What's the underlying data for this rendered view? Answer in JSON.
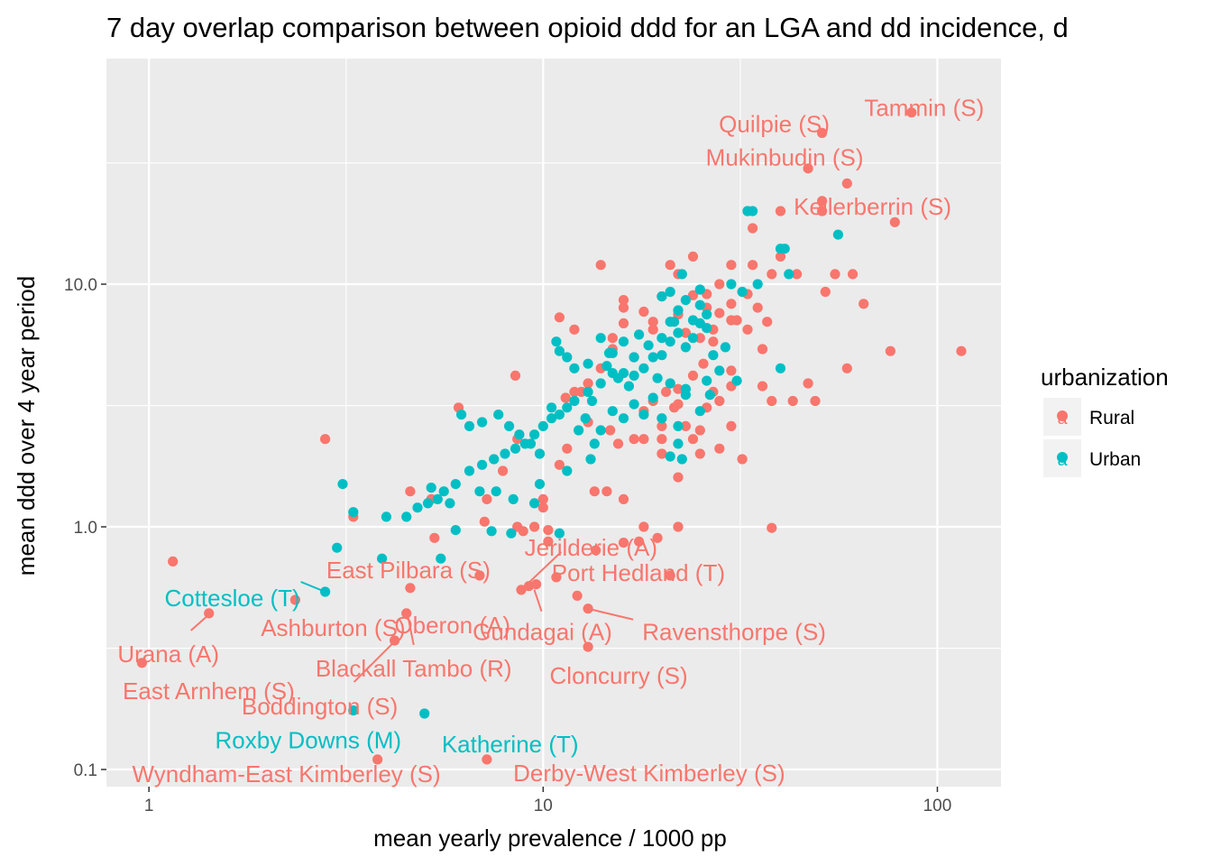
{
  "chart_data": {
    "type": "scatter",
    "title": "7 day overlap comparison between opioid ddd for an LGA and dd incidence, d",
    "xlabel": "mean yearly prevalence / 1000 pp",
    "ylabel": "mean ddd over 4 year period",
    "x_scale": "log10",
    "y_scale": "log10",
    "xlim": [
      0.78,
      145
    ],
    "ylim": [
      0.085,
      85
    ],
    "x_ticks": [
      1,
      10,
      100
    ],
    "x_tick_labels": [
      "1",
      "10",
      "100"
    ],
    "y_ticks": [
      0.1,
      1,
      10
    ],
    "y_tick_labels": [
      "0.1",
      "1.0",
      "10.0"
    ],
    "grid": true,
    "legend": {
      "title": "urbanization",
      "placement": "right",
      "key_glyph": "a"
    },
    "colors": {
      "Rural": "#F8766D",
      "Urban": "#00BFC4",
      "panel": "#EBEBEB",
      "grid": "#FFFFFF"
    },
    "series": [
      {
        "name": "Rural",
        "points": [
          [
            86,
            51
          ],
          [
            51,
            42
          ],
          [
            47,
            30
          ],
          [
            59,
            26
          ],
          [
            51,
            20
          ],
          [
            51,
            22
          ],
          [
            40,
            20
          ],
          [
            78,
            18
          ],
          [
            33,
            20
          ],
          [
            34,
            17
          ],
          [
            55,
            11
          ],
          [
            61,
            11
          ],
          [
            65,
            8.3
          ],
          [
            52,
            9.3
          ],
          [
            40,
            13
          ],
          [
            38,
            11
          ],
          [
            44,
            11
          ],
          [
            115,
            5.3
          ],
          [
            76,
            5.3
          ],
          [
            59,
            4.5
          ],
          [
            47,
            3.9
          ],
          [
            43,
            3.3
          ],
          [
            49,
            3.3
          ],
          [
            38,
            0.99
          ],
          [
            14,
            12
          ],
          [
            12,
            6.5
          ],
          [
            11,
            7.3
          ],
          [
            6.1,
            3.1
          ],
          [
            2.8,
            2.3
          ],
          [
            1.15,
            0.72
          ],
          [
            1.42,
            0.44
          ],
          [
            0.96,
            0.275
          ],
          [
            2.35,
            0.5
          ],
          [
            3.3,
            1.1
          ],
          [
            8.5,
            4.2
          ],
          [
            8.6,
            2.3
          ],
          [
            11,
            1.8
          ],
          [
            11.5,
            2.1
          ],
          [
            13.5,
            1.4
          ],
          [
            14.5,
            1.4
          ],
          [
            16,
            1.3
          ],
          [
            18,
            1.0
          ],
          [
            22,
            1.0
          ],
          [
            10,
            1.3
          ],
          [
            10.3,
            0.97
          ],
          [
            9.5,
            1.0
          ],
          [
            8.9,
            0.96
          ],
          [
            8.6,
            1.0
          ],
          [
            7.2,
            1.3
          ],
          [
            7.9,
            1.7
          ],
          [
            10,
            1.2
          ],
          [
            4.6,
            1.4
          ],
          [
            5.3,
            0.9
          ],
          [
            5.2,
            1.3
          ],
          [
            7.1,
            1.05
          ],
          [
            8.8,
            0.55
          ],
          [
            9.2,
            0.57
          ],
          [
            9.6,
            0.58
          ],
          [
            10.3,
            0.87
          ],
          [
            10.8,
            0.62
          ],
          [
            12.2,
            0.52
          ],
          [
            13.0,
            0.46
          ],
          [
            13.6,
            0.8
          ],
          [
            16.0,
            0.86
          ],
          [
            17.5,
            0.87
          ],
          [
            19.5,
            0.9
          ],
          [
            21,
            0.63
          ],
          [
            13,
            0.32
          ],
          [
            4.6,
            0.56
          ],
          [
            4.5,
            0.44
          ],
          [
            6.9,
            0.63
          ],
          [
            4.2,
            0.34
          ],
          [
            3.8,
            0.11
          ],
          [
            7.2,
            0.11
          ],
          [
            20,
            2.3
          ],
          [
            20,
            2.0
          ],
          [
            22,
            1.6
          ],
          [
            22,
            3.7
          ],
          [
            23,
            2.6
          ],
          [
            25,
            2.0
          ],
          [
            25,
            2.5
          ],
          [
            27,
            3.6
          ],
          [
            30,
            3.8
          ],
          [
            30,
            2.6
          ],
          [
            32,
            1.9
          ],
          [
            36,
            3.8
          ],
          [
            38,
            3.3
          ],
          [
            27,
            6.5
          ],
          [
            30,
            4.4
          ],
          [
            30,
            8.3
          ],
          [
            33,
            9.1
          ],
          [
            35,
            8.0
          ],
          [
            36,
            5.4
          ],
          [
            37,
            7.0
          ],
          [
            26,
            8.0
          ],
          [
            25,
            6.0
          ],
          [
            23,
            6.3
          ],
          [
            24,
            9.0
          ],
          [
            19,
            6.5
          ],
          [
            17,
            5.0
          ],
          [
            16,
            6.9
          ],
          [
            16,
            8.0
          ],
          [
            15,
            6.0
          ],
          [
            14,
            4.5
          ],
          [
            13,
            3.9
          ],
          [
            12,
            3.6
          ],
          [
            11.4,
            3.4
          ],
          [
            13,
            2.7
          ],
          [
            14.8,
            2.5
          ],
          [
            15.5,
            2.2
          ],
          [
            17,
            2.3
          ],
          [
            18,
            3.0
          ],
          [
            19,
            3.3
          ],
          [
            20.5,
            3.6
          ],
          [
            21.5,
            3.1
          ],
          [
            24,
            4.2
          ],
          [
            25.5,
            4.7
          ],
          [
            27,
            5.8
          ],
          [
            28,
            7.6
          ],
          [
            30,
            7.1
          ],
          [
            31,
            7.1
          ],
          [
            33,
            6.5
          ],
          [
            21,
            12
          ],
          [
            22,
            11
          ],
          [
            24,
            13
          ],
          [
            26,
            9.1
          ],
          [
            30,
            12
          ],
          [
            34,
            12
          ],
          [
            28,
            10
          ],
          [
            22,
            7.5
          ],
          [
            18,
            7.7
          ],
          [
            20,
            8.9
          ],
          [
            16,
            8.6
          ],
          [
            19,
            7.0
          ],
          [
            15,
            5.4
          ],
          [
            12.5,
            3.6
          ],
          [
            22,
            3.2
          ],
          [
            26,
            3.1
          ],
          [
            24,
            2.3
          ],
          [
            28,
            2.1
          ],
          [
            28,
            3.3
          ],
          [
            20,
            2.6
          ],
          [
            18,
            2.3
          ]
        ]
      },
      {
        "name": "Urban",
        "points": [
          [
            33,
            20
          ],
          [
            34,
            20
          ],
          [
            56,
            16
          ],
          [
            40,
            14
          ],
          [
            41,
            14
          ],
          [
            42,
            11
          ],
          [
            32,
            9.3
          ],
          [
            30,
            10
          ],
          [
            35,
            10
          ],
          [
            25,
            9.5
          ],
          [
            25,
            8.2
          ],
          [
            23,
            8.6
          ],
          [
            22,
            7.8
          ],
          [
            21,
            7.0
          ],
          [
            20,
            6.0
          ],
          [
            19,
            5.0
          ],
          [
            17,
            5.0
          ],
          [
            16,
            4.3
          ],
          [
            15,
            4.3
          ],
          [
            14,
            3.9
          ],
          [
            13,
            3.6
          ],
          [
            12,
            3.3
          ],
          [
            11.5,
            3.1
          ],
          [
            11,
            2.9
          ],
          [
            10.5,
            2.8
          ],
          [
            10,
            2.6
          ],
          [
            9.5,
            2.4
          ],
          [
            9.0,
            2.2
          ],
          [
            8.5,
            2.1
          ],
          [
            8.0,
            2.0
          ],
          [
            7.5,
            1.9
          ],
          [
            7.0,
            1.8
          ],
          [
            6.5,
            1.7
          ],
          [
            6.0,
            1.5
          ],
          [
            5.6,
            1.4
          ],
          [
            5.4,
            1.3
          ],
          [
            5.1,
            1.25
          ],
          [
            4.8,
            1.2
          ],
          [
            4.5,
            1.1
          ],
          [
            4.0,
            1.1
          ],
          [
            3.3,
            1.15
          ],
          [
            3.1,
            1.5
          ],
          [
            2.8,
            0.54
          ],
          [
            3.3,
            0.175
          ],
          [
            5.0,
            0.17
          ],
          [
            3.0,
            0.82
          ],
          [
            3.9,
            0.74
          ],
          [
            5.5,
            0.74
          ],
          [
            6.0,
            0.97
          ],
          [
            7.4,
            0.96
          ],
          [
            8.3,
            0.94
          ],
          [
            9.5,
            1.25
          ],
          [
            11,
            0.94
          ],
          [
            6.2,
            2.9
          ],
          [
            6.5,
            2.6
          ],
          [
            7.0,
            2.7
          ],
          [
            7.7,
            2.9
          ],
          [
            8.2,
            2.6
          ],
          [
            8.7,
            2.4
          ],
          [
            9.3,
            2.2
          ],
          [
            9.8,
            2.0
          ],
          [
            10.5,
            3.1
          ],
          [
            12.0,
            4.5
          ],
          [
            11.0,
            5.3
          ],
          [
            11.5,
            5.0
          ],
          [
            13.0,
            4.7
          ],
          [
            14.5,
            4.6
          ],
          [
            15.5,
            4.1
          ],
          [
            16.5,
            3.8
          ],
          [
            17.0,
            4.2
          ],
          [
            18.0,
            4.5
          ],
          [
            19.5,
            4.1
          ],
          [
            21.0,
            3.9
          ],
          [
            23.0,
            3.7
          ],
          [
            26.0,
            4.0
          ],
          [
            28.0,
            4.4
          ],
          [
            31,
            4.0
          ],
          [
            40,
            4.5
          ],
          [
            24,
            6.0
          ],
          [
            26,
            6.6
          ],
          [
            27,
            5.1
          ],
          [
            29,
            5.5
          ],
          [
            23,
            5.5
          ],
          [
            22,
            6.3
          ],
          [
            20,
            5.1
          ],
          [
            21,
            5.8
          ],
          [
            25,
            6.9
          ],
          [
            24,
            7.1
          ],
          [
            26,
            7.5
          ],
          [
            21.5,
            7.0
          ],
          [
            18.5,
            5.6
          ],
          [
            17.5,
            6.2
          ],
          [
            16,
            5.8
          ],
          [
            15,
            5.2
          ],
          [
            14,
            6.0
          ],
          [
            13.3,
            3.3
          ],
          [
            12.8,
            2.8
          ],
          [
            12.3,
            2.5
          ],
          [
            13.5,
            2.2
          ],
          [
            14.0,
            2.5
          ],
          [
            15.0,
            3.0
          ],
          [
            16.0,
            2.8
          ],
          [
            17.0,
            3.2
          ],
          [
            19.0,
            3.4
          ],
          [
            20.0,
            2.8
          ],
          [
            22.0,
            2.2
          ],
          [
            23.0,
            3.5
          ],
          [
            26.5,
            3.5
          ],
          [
            25.0,
            3.0
          ],
          [
            22.0,
            2.6
          ],
          [
            18.0,
            2.9
          ],
          [
            21.0,
            1.95
          ],
          [
            22.5,
            1.9
          ],
          [
            13.2,
            1.9
          ],
          [
            11.5,
            1.7
          ],
          [
            9.8,
            1.5
          ],
          [
            8.4,
            1.3
          ],
          [
            7.6,
            1.4
          ],
          [
            6.9,
            1.4
          ],
          [
            5.8,
            1.25
          ],
          [
            5.2,
            1.45
          ],
          [
            10.8,
            5.8
          ],
          [
            14.7,
            5.2
          ],
          [
            22.5,
            11
          ],
          [
            20.0,
            8.9
          ],
          [
            21.0,
            9.3
          ]
        ]
      }
    ],
    "annotations": [
      {
        "text": "Tammin (S)",
        "series": "Rural",
        "x": 86,
        "y": 51
      },
      {
        "text": "Quilpie (S)",
        "series": "Rural",
        "x": 51,
        "y": 42
      },
      {
        "text": "Mukinbudin (S)",
        "series": "Rural",
        "x": 47,
        "y": 30
      },
      {
        "text": "Kellerberrin (S)",
        "series": "Rural",
        "x": 51,
        "y": 20
      },
      {
        "text": "Jerilderie (A)",
        "series": "Rural",
        "x": 9.0,
        "y": 0.55
      },
      {
        "text": "East Pilbara (S)",
        "series": "Rural",
        "x": 6.9,
        "y": 0.63
      },
      {
        "text": "Port Hedland (T)",
        "series": "Rural",
        "x": 10.8,
        "y": 0.62
      },
      {
        "text": "Cottesloe (T)",
        "series": "Urban",
        "x": 2.8,
        "y": 0.54
      },
      {
        "text": "Oberon (A)",
        "series": "Rural",
        "x": 4.5,
        "y": 0.44
      },
      {
        "text": "Gundagai (A)",
        "series": "Rural",
        "x": 9.2,
        "y": 0.57
      },
      {
        "text": "Ravensthorpe (S)",
        "series": "Rural",
        "x": 13.0,
        "y": 0.46
      },
      {
        "text": "Ashburton (S)",
        "series": "Rural",
        "x": 2.35,
        "y": 0.5
      },
      {
        "text": "Urana (A)",
        "series": "Rural",
        "x": 1.42,
        "y": 0.44
      },
      {
        "text": "Blackall Tambo (R)",
        "series": "Rural",
        "x": 4.5,
        "y": 0.44
      },
      {
        "text": "Cloncurry (S)",
        "series": "Rural",
        "x": 13,
        "y": 0.32
      },
      {
        "text": "East Arnhem (S)",
        "series": "Rural",
        "x": 0.96,
        "y": 0.275
      },
      {
        "text": "Boddington (S)",
        "series": "Rural",
        "x": 4.2,
        "y": 0.34
      },
      {
        "text": "Roxby Downs (M)",
        "series": "Urban",
        "x": 3.3,
        "y": 0.175
      },
      {
        "text": "Katherine (T)",
        "series": "Urban",
        "x": 5.0,
        "y": 0.17
      },
      {
        "text": "Wyndham-East Kimberley (S)",
        "series": "Rural",
        "x": 3.8,
        "y": 0.11
      },
      {
        "text": "Derby-West Kimberley (S)",
        "series": "Rural",
        "x": 7.2,
        "y": 0.11
      }
    ]
  }
}
